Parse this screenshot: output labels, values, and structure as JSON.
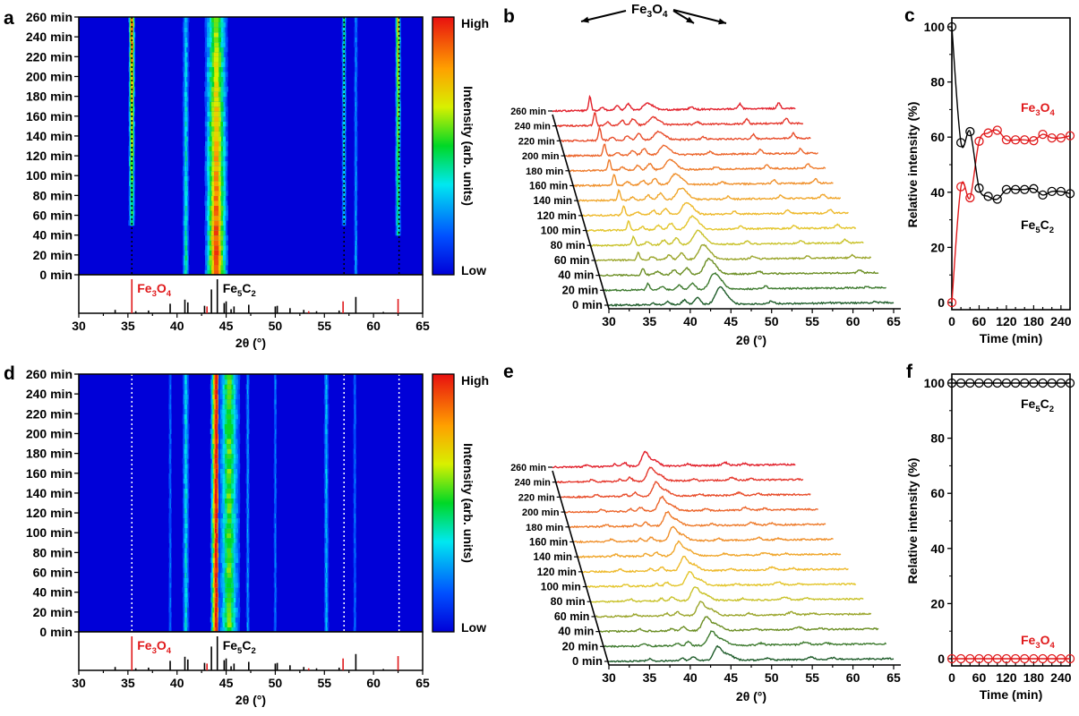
{
  "figure": {
    "panel_letters": [
      "a",
      "b",
      "c",
      "d",
      "e",
      "f"
    ]
  },
  "chart_data": [
    {
      "panel": "a",
      "type": "heatmap",
      "title": "",
      "xlabel": "2θ (°)",
      "ylabel": "",
      "xlim": [
        30,
        65
      ],
      "ylim": [
        0,
        260
      ],
      "xticks": [
        30,
        35,
        40,
        45,
        50,
        55,
        60,
        65
      ],
      "yticks": [
        "0 min",
        "20 min",
        "40 min",
        "60 min",
        "80 min",
        "100 min",
        "120 min",
        "140 min",
        "160 min",
        "180 min",
        "200 min",
        "220 min",
        "240 min",
        "260 min"
      ],
      "colorbar": {
        "label": "Intensity (arb. units)",
        "high": "High",
        "low": "Low"
      },
      "dotted_reference_lines": [
        35.4,
        57.0,
        62.6
      ],
      "dotted_line_color": "#000000",
      "bands": [
        {
          "center": 35.4,
          "width": 0.5,
          "intensity_start": 0.35,
          "intensity_end": 0.95,
          "onset_min": 50
        },
        {
          "center": 40.9,
          "width": 0.5,
          "intensity_start": 0.45,
          "intensity_end": 0.3,
          "onset_min": 0
        },
        {
          "center": 44.0,
          "width": 1.8,
          "intensity_start": 0.95,
          "intensity_end": 0.6,
          "onset_min": 0
        },
        {
          "center": 57.0,
          "width": 0.35,
          "intensity_start": 0.3,
          "intensity_end": 0.45,
          "onset_min": 50
        },
        {
          "center": 58.2,
          "width": 0.25,
          "intensity_start": 0.3,
          "intensity_end": 0.2,
          "onset_min": 0
        },
        {
          "center": 62.5,
          "width": 0.45,
          "intensity_start": 0.35,
          "intensity_end": 0.75,
          "onset_min": 40
        }
      ],
      "reference_patterns": {
        "Fe3O4": {
          "label": "Fe3O4",
          "color": "#e0191b",
          "sticks": [
            [
              35.4,
              1.0
            ],
            [
              43.05,
              0.2
            ],
            [
              53.4,
              0.06
            ],
            [
              56.9,
              0.35
            ],
            [
              62.5,
              0.42
            ]
          ]
        },
        "Fe5C2": {
          "label": "Fe5C2",
          "color": "#000000",
          "sticks": [
            [
              33.7,
              0.1
            ],
            [
              35.8,
              0.06
            ],
            [
              37.1,
              0.08
            ],
            [
              39.3,
              0.28
            ],
            [
              40.8,
              0.4
            ],
            [
              41.1,
              0.32
            ],
            [
              42.8,
              0.22
            ],
            [
              43.5,
              0.7
            ],
            [
              44.1,
              1.0
            ],
            [
              44.8,
              0.3
            ],
            [
              45.0,
              0.35
            ],
            [
              45.5,
              0.12
            ],
            [
              45.8,
              0.2
            ],
            [
              47.3,
              0.25
            ],
            [
              50.0,
              0.2
            ],
            [
              50.2,
              0.22
            ],
            [
              51.5,
              0.15
            ],
            [
              52.9,
              0.1
            ],
            [
              54.2,
              0.06
            ],
            [
              56.5,
              0.08
            ],
            [
              58.2,
              0.48
            ],
            [
              61.0,
              0.04
            ]
          ]
        }
      }
    },
    {
      "panel": "b",
      "type": "line",
      "subtype": "waterfall",
      "xlabel": "2θ (°)",
      "xlim": [
        30,
        65
      ],
      "xticks": [
        30,
        35,
        40,
        45,
        50,
        55,
        60,
        65
      ],
      "series_labels": [
        "0 min",
        "20 min",
        "40 min",
        "60 min",
        "80 min",
        "100 min",
        "120 min",
        "140 min",
        "160 min",
        "180 min",
        "200 min",
        "220 min",
        "240 min",
        "260 min"
      ],
      "annotation": {
        "text": "Fe3O4",
        "arrows_to_2theta": [
          35.4,
          57.0,
          62.6
        ]
      },
      "peaks": [
        {
          "pos": 35.4,
          "height": 0.55,
          "sigma": 0.18,
          "onset_index": 1,
          "grow": true
        },
        {
          "pos": 37.2,
          "height": 0.12,
          "sigma": 0.3
        },
        {
          "pos": 39.3,
          "height": 0.18,
          "sigma": 0.3
        },
        {
          "pos": 40.9,
          "height": 0.25,
          "sigma": 0.35
        },
        {
          "pos": 43.5,
          "height": 0.5,
          "sigma": 0.5,
          "shrink": true
        },
        {
          "pos": 44.3,
          "height": 0.35,
          "sigma": 0.6,
          "shrink": true
        },
        {
          "pos": 50.0,
          "height": 0.1,
          "sigma": 0.3
        },
        {
          "pos": 57.0,
          "height": 0.2,
          "sigma": 0.25,
          "onset_index": 3,
          "grow": true
        },
        {
          "pos": 62.6,
          "height": 0.22,
          "sigma": 0.25,
          "onset_index": 2,
          "grow": true
        }
      ],
      "colors": [
        "#1e5c2a",
        "#3d7a2e",
        "#6b8e23",
        "#9aa52a",
        "#c9c22a",
        "#e3c52b",
        "#eeb92b",
        "#f0a62b",
        "#f0902b",
        "#ee7b2b",
        "#ec652b",
        "#e84d2b",
        "#e5362b",
        "#e2202b"
      ]
    },
    {
      "panel": "c",
      "type": "scatter",
      "xlabel": "Time (min)",
      "ylabel": "Relative intensity (%)",
      "xlim": [
        0,
        260
      ],
      "ylim": [
        0,
        100
      ],
      "xticks": [
        0,
        60,
        120,
        180,
        240
      ],
      "yticks": [
        0,
        20,
        40,
        60,
        80,
        100
      ],
      "series": [
        {
          "name": "Fe3O4",
          "label": "Fe3O4",
          "color": "#e0191b",
          "x": [
            0,
            20,
            40,
            60,
            80,
            100,
            120,
            140,
            160,
            180,
            200,
            220,
            240,
            260
          ],
          "y": [
            0,
            42,
            38,
            58.5,
            61.5,
            62.5,
            59,
            59,
            59,
            58.7,
            61,
            59.7,
            59.7,
            60.5
          ]
        },
        {
          "name": "Fe5C2",
          "label": "Fe5C2",
          "color": "#000000",
          "x": [
            0,
            20,
            40,
            60,
            80,
            100,
            120,
            140,
            160,
            180,
            200,
            220,
            240,
            260
          ],
          "y": [
            100,
            58,
            62,
            41.5,
            38.5,
            37.5,
            41,
            41,
            41,
            41.3,
            39,
            40.3,
            40.3,
            39.5
          ]
        }
      ]
    },
    {
      "panel": "d",
      "type": "heatmap",
      "xlabel": "2θ (°)",
      "xlim": [
        30,
        65
      ],
      "ylim": [
        0,
        260
      ],
      "xticks": [
        30,
        35,
        40,
        45,
        50,
        55,
        60,
        65
      ],
      "yticks": [
        "0 min",
        "20 min",
        "40 min",
        "60 min",
        "80 min",
        "100 min",
        "120 min",
        "140 min",
        "160 min",
        "180 min",
        "200 min",
        "220 min",
        "240 min",
        "260 min"
      ],
      "colorbar": {
        "label": "Intensity (arb. units)",
        "high": "High",
        "low": "Low"
      },
      "dotted_reference_lines": [
        35.4,
        57.0,
        62.6
      ],
      "dotted_line_color": "#ffffff",
      "bands": [
        {
          "center": 39.3,
          "width": 0.2,
          "intensity_start": 0.18,
          "intensity_end": 0.18,
          "onset_min": 0
        },
        {
          "center": 40.9,
          "width": 0.5,
          "intensity_start": 0.35,
          "intensity_end": 0.35,
          "onset_min": 0
        },
        {
          "center": 44.0,
          "width": 0.9,
          "intensity_start": 1.0,
          "intensity_end": 1.0,
          "onset_min": 0
        },
        {
          "center": 45.3,
          "width": 1.7,
          "intensity_start": 0.55,
          "intensity_end": 0.55,
          "onset_min": 0
        },
        {
          "center": 47.2,
          "width": 0.25,
          "intensity_start": 0.25,
          "intensity_end": 0.25,
          "onset_min": 0
        },
        {
          "center": 50.0,
          "width": 0.2,
          "intensity_start": 0.2,
          "intensity_end": 0.2,
          "onset_min": 0
        },
        {
          "center": 55.2,
          "width": 0.35,
          "intensity_start": 0.3,
          "intensity_end": 0.3,
          "onset_min": 0
        },
        {
          "center": 58.1,
          "width": 0.2,
          "intensity_start": 0.18,
          "intensity_end": 0.18,
          "onset_min": 0
        }
      ],
      "reference_patterns_same_as": "a"
    },
    {
      "panel": "e",
      "type": "line",
      "subtype": "waterfall",
      "xlabel": "2θ (°)",
      "xlim": [
        30,
        65
      ],
      "xticks": [
        30,
        35,
        40,
        45,
        50,
        55,
        60,
        65
      ],
      "series_labels": [
        "0 min",
        "20 min",
        "40 min",
        "60 min",
        "80 min",
        "100 min",
        "120 min",
        "140 min",
        "160 min",
        "180 min",
        "200 min",
        "220 min",
        "240 min",
        "260 min"
      ],
      "peaks": [
        {
          "pos": 35.0,
          "height": 0.08,
          "sigma": 0.3
        },
        {
          "pos": 39.0,
          "height": 0.1,
          "sigma": 0.25
        },
        {
          "pos": 40.4,
          "height": 0.15,
          "sigma": 0.3
        },
        {
          "pos": 43.3,
          "height": 0.5,
          "sigma": 0.45
        },
        {
          "pos": 44.5,
          "height": 0.25,
          "sigma": 0.7
        },
        {
          "pos": 49.5,
          "height": 0.07,
          "sigma": 0.3
        },
        {
          "pos": 54.9,
          "height": 0.1,
          "sigma": 0.4
        },
        {
          "pos": 57.6,
          "height": 0.06,
          "sigma": 0.3
        }
      ],
      "colors": [
        "#1e5c2a",
        "#3d7a2e",
        "#6b8e23",
        "#9aa52a",
        "#c9c22a",
        "#e3c52b",
        "#eeb92b",
        "#f0a62b",
        "#f0902b",
        "#ee7b2b",
        "#ec652b",
        "#e84d2b",
        "#e5362b",
        "#e2202b"
      ]
    },
    {
      "panel": "f",
      "type": "scatter",
      "xlabel": "Time (min)",
      "ylabel": "Relative intensity (%)",
      "xlim": [
        0,
        260
      ],
      "ylim": [
        0,
        100
      ],
      "xticks": [
        0,
        60,
        120,
        180,
        240
      ],
      "yticks": [
        0,
        20,
        40,
        60,
        80,
        100
      ],
      "series": [
        {
          "name": "Fe5C2",
          "label": "Fe5C2",
          "color": "#000000",
          "x": [
            0,
            20,
            40,
            60,
            80,
            100,
            120,
            140,
            160,
            180,
            200,
            220,
            240,
            260
          ],
          "y": [
            100,
            100,
            100,
            100,
            100,
            100,
            100,
            100,
            100,
            100,
            100,
            100,
            100,
            100
          ]
        },
        {
          "name": "Fe3O4",
          "label": "Fe3O4",
          "color": "#e0191b",
          "x": [
            0,
            20,
            40,
            60,
            80,
            100,
            120,
            140,
            160,
            180,
            200,
            220,
            240,
            260
          ],
          "y": [
            0,
            0,
            0,
            0,
            0,
            0,
            0,
            0,
            0,
            0,
            0,
            0,
            0,
            0
          ]
        }
      ]
    }
  ]
}
